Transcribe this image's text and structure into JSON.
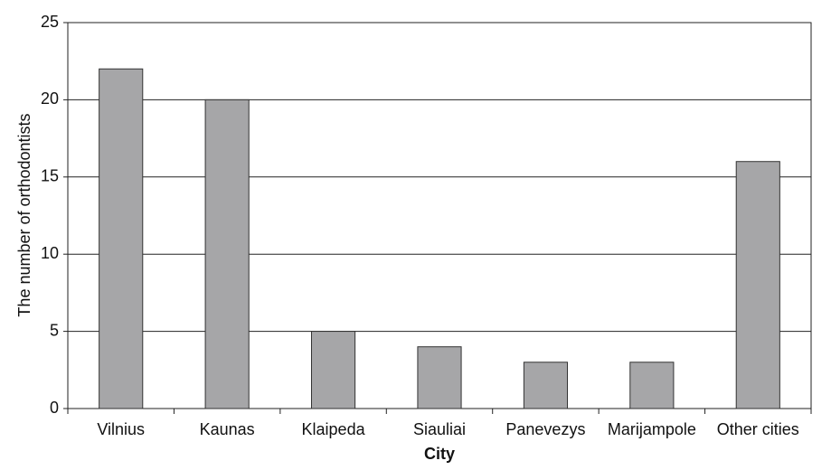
{
  "chart_data": {
    "type": "bar",
    "x_label": "City",
    "y_label": "The number of orthodontists",
    "categories": [
      "Vilnius",
      "Kaunas",
      "Klaipeda",
      "Siauliai",
      "Panevezys",
      "Marijampole",
      "Other cities"
    ],
    "values": [
      22,
      20,
      5,
      4,
      3,
      3,
      16
    ],
    "color": "#a6a6a8",
    "ylim": [
      0,
      25
    ],
    "yticks": [
      0,
      5,
      10,
      15,
      20,
      25
    ],
    "grid": true
  }
}
